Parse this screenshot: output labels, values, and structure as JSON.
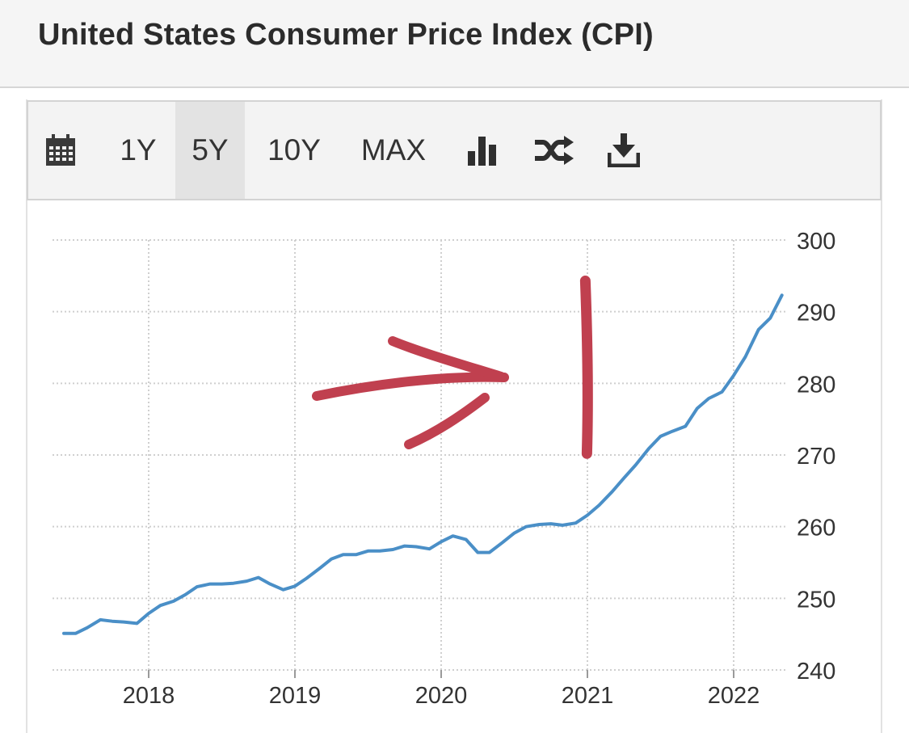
{
  "title": "United States Consumer Price Index (CPI)",
  "toolbar": {
    "ranges": [
      "1Y",
      "5Y",
      "10Y",
      "MAX"
    ],
    "active_range": "5Y",
    "icons": [
      "calendar-icon",
      "bar-chart-icon",
      "shuffle-icon",
      "download-icon"
    ]
  },
  "colors": {
    "line": "#4a8fc7",
    "grid": "#cfcfcf",
    "annotation": "#c0404f",
    "text": "#333333"
  },
  "chart_data": {
    "type": "line",
    "title": "United States Consumer Price Index (CPI)",
    "xlabel": "",
    "ylabel": "",
    "grid": true,
    "xlim": [
      2017.45,
      2022.35
    ],
    "ylim": [
      240,
      300
    ],
    "x_ticks": [
      2018,
      2019,
      2020,
      2021,
      2022
    ],
    "x_tick_labels": [
      "2018",
      "2019",
      "2020",
      "2021",
      "2022"
    ],
    "y_ticks": [
      240,
      250,
      260,
      270,
      280,
      290,
      300
    ],
    "y_tick_labels": [
      "240",
      "250",
      "260",
      "270",
      "280",
      "290",
      "300"
    ],
    "y_axis_side": "right",
    "series": [
      {
        "name": "CPI",
        "x": [
          2017.42,
          2017.5,
          2017.58,
          2017.67,
          2017.75,
          2017.83,
          2017.92,
          2018.0,
          2018.08,
          2018.17,
          2018.25,
          2018.33,
          2018.42,
          2018.5,
          2018.58,
          2018.67,
          2018.75,
          2018.83,
          2018.92,
          2019.0,
          2019.08,
          2019.17,
          2019.25,
          2019.33,
          2019.42,
          2019.5,
          2019.58,
          2019.67,
          2019.75,
          2019.83,
          2019.92,
          2020.0,
          2020.08,
          2020.17,
          2020.25,
          2020.33,
          2020.42,
          2020.5,
          2020.58,
          2020.67,
          2020.75,
          2020.83,
          2020.92,
          2021.0,
          2021.08,
          2021.17,
          2021.25,
          2021.33,
          2021.42,
          2021.5,
          2021.58,
          2021.67,
          2021.75,
          2021.83,
          2021.92,
          2022.0,
          2022.08,
          2022.17,
          2022.25,
          2022.33
        ],
        "values": [
          245.1,
          245.1,
          245.9,
          247.0,
          246.8,
          246.7,
          246.5,
          247.9,
          249.0,
          249.6,
          250.5,
          251.6,
          252.0,
          252.0,
          252.1,
          252.4,
          252.9,
          252.0,
          251.2,
          251.7,
          252.8,
          254.2,
          255.5,
          256.1,
          256.1,
          256.6,
          256.6,
          256.8,
          257.3,
          257.2,
          256.9,
          257.9,
          258.7,
          258.2,
          256.4,
          256.4,
          257.8,
          259.1,
          260.0,
          260.3,
          260.4,
          260.2,
          260.5,
          261.6,
          263.0,
          264.9,
          266.8,
          268.6,
          270.9,
          272.6,
          273.3,
          274.0,
          276.5,
          277.9,
          278.8,
          281.1,
          283.7,
          287.5,
          289.1,
          292.3
        ]
      }
    ],
    "annotations": [
      {
        "type": "hand-drawn-arrow",
        "direction": "right",
        "color": "#c0404f"
      },
      {
        "type": "hand-drawn-vertical-line",
        "at_x": 2020.98,
        "from_y": 270.2,
        "to_y": 294.3,
        "color": "#c0404f"
      }
    ]
  }
}
